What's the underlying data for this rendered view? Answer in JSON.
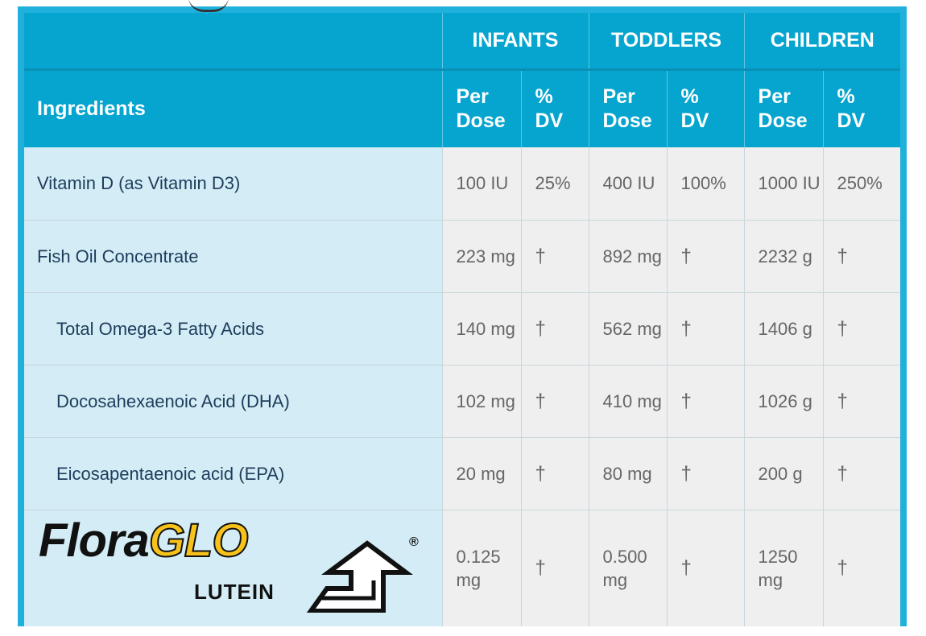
{
  "header": {
    "groups": [
      "INFANTS",
      "TODDLERS",
      "CHILDREN"
    ],
    "ingredients_label": "Ingredients",
    "per_dose_line1": "Per",
    "per_dose_line2": "Dose",
    "dv_line1": "%",
    "dv_line2": "DV"
  },
  "rows": [
    {
      "name": "Vitamin D (as Vitamin D3)",
      "infants_dose": "100 IU",
      "infants_dv": "25%",
      "toddlers_dose": "400 IU",
      "toddlers_dv": "100%",
      "children_dose": "1000 IU",
      "children_dv": "250%"
    },
    {
      "name": "Fish Oil Concentrate",
      "infants_dose": "223 mg",
      "infants_dv": "†",
      "toddlers_dose": "892 mg",
      "toddlers_dv": "†",
      "children_dose": "2232 g",
      "children_dv": "†"
    },
    {
      "name": "Total Omega-3 Fatty Acids",
      "infants_dose": "140 mg",
      "infants_dv": "†",
      "toddlers_dose": "562 mg",
      "toddlers_dv": "†",
      "children_dose": "1406 g",
      "children_dv": "†"
    },
    {
      "name": "Docosahexaenoic Acid (DHA)",
      "infants_dose": "102 mg",
      "infants_dv": "†",
      "toddlers_dose": "410 mg",
      "toddlers_dv": "†",
      "children_dose": "1026 g",
      "children_dv": "†"
    },
    {
      "name": "Eicosapentaenoic acid (EPA)",
      "infants_dose": "20 mg",
      "infants_dv": "†",
      "toddlers_dose": "80 mg",
      "toddlers_dv": "†",
      "children_dose": "200 g",
      "children_dv": "†"
    },
    {
      "logo_flora": "Flora",
      "logo_glo": "GLO",
      "logo_lutein": "LUTEIN",
      "logo_reg": "®",
      "infants_dose": "0.125 mg",
      "infants_dv": "†",
      "toddlers_dose": "0.500 mg",
      "toddlers_dv": "†",
      "children_dose": "1250 mg",
      "children_dv": "†"
    }
  ],
  "colors": {
    "frame": "#1fb0dc",
    "header_bg": "#06a5cf",
    "name_cell_bg": "#d3ecf5",
    "value_cell_bg": "#efefef",
    "name_text": "#1e3d5c",
    "logo_accent": "#f6c21b"
  },
  "icons": [
    "floraglo-arrow-icon"
  ]
}
